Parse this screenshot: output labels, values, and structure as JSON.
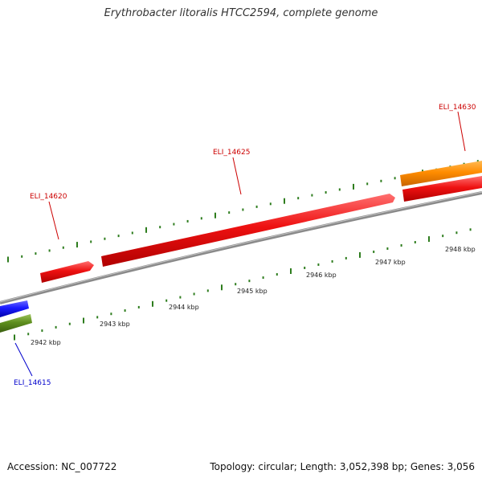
{
  "title": "Erythrobacter litoralis HTCC2594, complete genome",
  "footer": {
    "accession": "Accession: NC_007722",
    "summary": "Topology: circular; Length: 3,052,398 bp; Genes: 3,056"
  },
  "colors": {
    "backbone": "#8a8a8a",
    "tick": "#2e7d1e",
    "label_red": "#cc0000",
    "label_blue": "#0000cc"
  },
  "scale_labels": [
    "2942 kbp",
    "2943 kbp",
    "2944 kbp",
    "2945 kbp",
    "2946 kbp",
    "2947 kbp",
    "2948 kbp"
  ],
  "genes": [
    {
      "name": "ELI_14615",
      "color": "#1a1aff",
      "label_color": "#0000cc"
    },
    {
      "name": "ELI_14620",
      "color": "#ee1111",
      "label_color": "#cc0000"
    },
    {
      "name": "ELI_14625",
      "color": "#ee1111",
      "label_color": "#cc0000"
    },
    {
      "name": "ELI_14630",
      "color": "#ee1111",
      "label_color": "#cc0000"
    }
  ],
  "extra_features": [
    {
      "kind": "green-bar",
      "color": "#5e8f1e"
    },
    {
      "kind": "orange-bar",
      "color": "#ff8c00"
    }
  ]
}
